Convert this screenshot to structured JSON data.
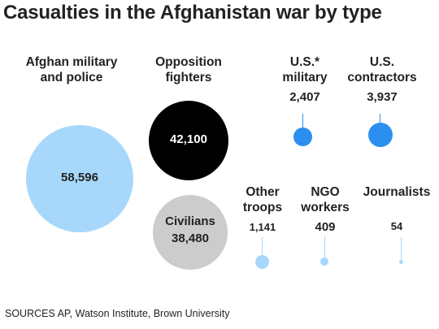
{
  "title": "Casualties in the Afghanistan war by type",
  "source": "SOURCES AP, Watson Institute, Brown University",
  "colors": {
    "afghan_military": "#a7d8fb",
    "opposition": "#000000",
    "us": "#2b8ff0",
    "civilians": "#cccccc",
    "other": "#a7d8fb"
  },
  "chart_data": {
    "type": "bubble",
    "title": "Casualties in the Afghanistan war by type",
    "categories": [
      "Afghan military and police",
      "Opposition fighters",
      "U.S.* military",
      "U.S. contractors",
      "Civilians",
      "Other troops",
      "NGO workers",
      "Journalists"
    ],
    "values": [
      58596,
      42100,
      2407,
      3937,
      38480,
      1141,
      409,
      54
    ],
    "labels": {
      "afghan": [
        "Afghan military",
        "and police"
      ],
      "opposition": [
        "Opposition",
        "fighters"
      ],
      "us_military": [
        "U.S.*",
        "military"
      ],
      "us_contractors": [
        "U.S.",
        "contractors"
      ],
      "civilians": "Civilians",
      "other_troops": [
        "Other",
        "troops"
      ],
      "ngo": [
        "NGO",
        "workers"
      ],
      "journalists": "Journalists"
    },
    "value_labels": {
      "afghan": "58,596",
      "opposition": "42,100",
      "us_military": "2,407",
      "us_contractors": "3,937",
      "civilians": "38,480",
      "other_troops": "1,141",
      "ngo": "409",
      "journalists": "54"
    }
  }
}
